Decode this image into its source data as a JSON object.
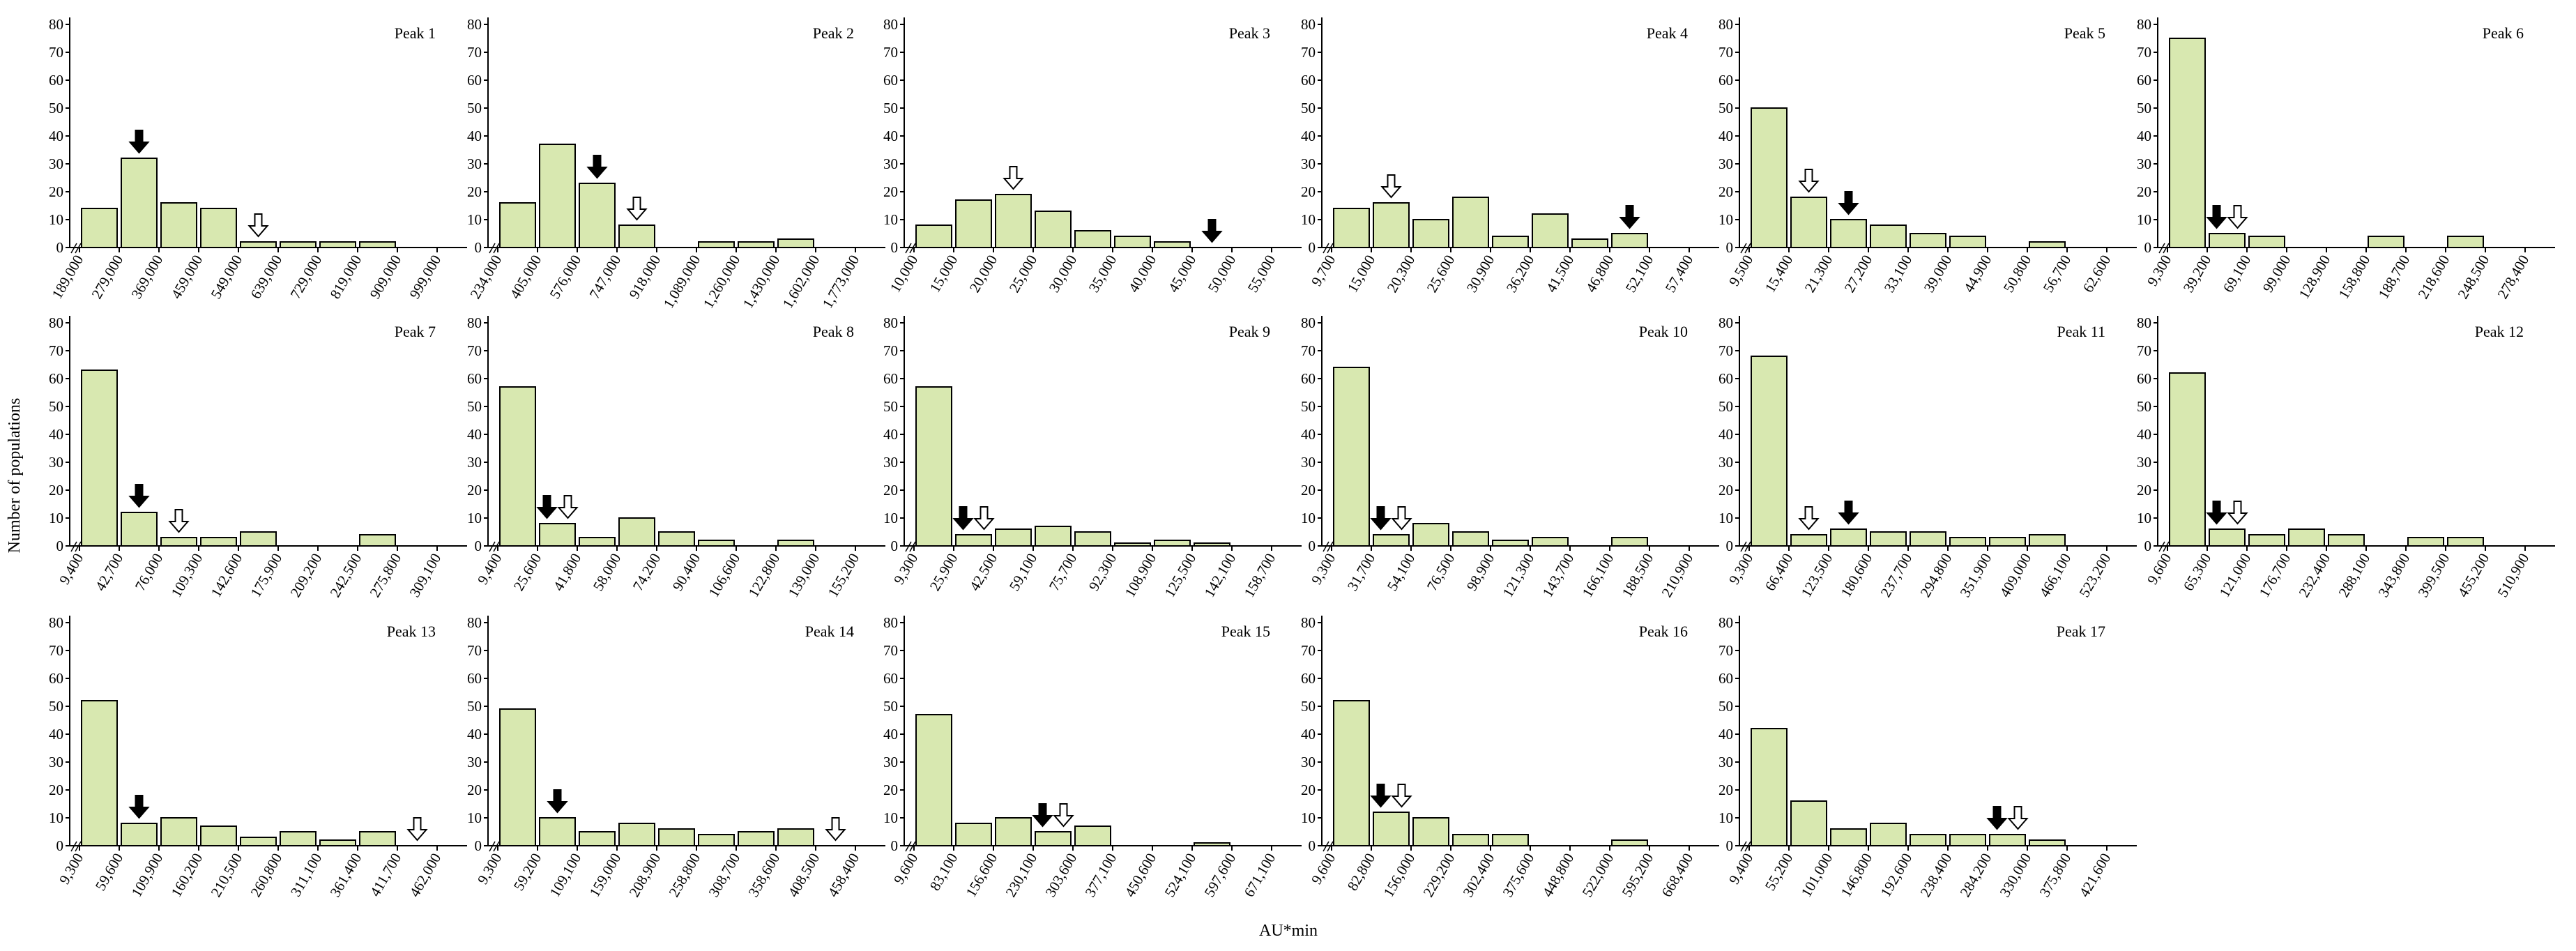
{
  "figure": {
    "ylabel": "Number of populations",
    "xlabel": "AU*min"
  },
  "style": {
    "bar_fill": "#d8e8b0",
    "bar_stroke": "#000000",
    "axis_color": "#000000",
    "open_arrow_fill": "#ffffff",
    "solid_arrow_fill": "#000000"
  },
  "chart_data": [
    {
      "type": "bar",
      "title": "Peak 1",
      "ylim": [
        0,
        80
      ],
      "yticks": [
        0,
        10,
        20,
        30,
        40,
        50,
        60,
        70,
        80
      ],
      "categories": [
        "189,000",
        "279,000",
        "369,000",
        "459,000",
        "549,000",
        "639,000",
        "729,000",
        "819,000",
        "909,000",
        "999,000"
      ],
      "values": [
        14,
        32,
        16,
        14,
        2,
        2,
        2,
        2,
        0,
        0
      ],
      "solid_arrow": "279,000",
      "open_arrow": "549,000"
    },
    {
      "type": "bar",
      "title": "Peak 2",
      "ylim": [
        0,
        80
      ],
      "yticks": [
        0,
        10,
        20,
        30,
        40,
        50,
        60,
        70,
        80
      ],
      "categories": [
        "234,000",
        "405,000",
        "576,000",
        "747,000",
        "918,000",
        "1,089,000",
        "1,260,000",
        "1,430,000",
        "1,602,000",
        "1,773,000"
      ],
      "values": [
        16,
        37,
        23,
        8,
        0,
        2,
        2,
        3,
        0,
        0
      ],
      "solid_arrow": "576,000",
      "open_arrow": "747,000"
    },
    {
      "type": "bar",
      "title": "Peak 3",
      "ylim": [
        0,
        80
      ],
      "yticks": [
        0,
        10,
        20,
        30,
        40,
        50,
        60,
        70,
        80
      ],
      "categories": [
        "10,000",
        "15,000",
        "20,000",
        "25,000",
        "30,000",
        "35,000",
        "40,000",
        "45,000",
        "50,000",
        "55,000"
      ],
      "values": [
        8,
        17,
        19,
        13,
        6,
        4,
        2,
        0,
        0,
        0
      ],
      "solid_arrow": "45,000",
      "open_arrow": "20,000"
    },
    {
      "type": "bar",
      "title": "Peak 4",
      "ylim": [
        0,
        80
      ],
      "yticks": [
        0,
        10,
        20,
        30,
        40,
        50,
        60,
        70,
        80
      ],
      "categories": [
        "9,700",
        "15,000",
        "20,300",
        "25,600",
        "30,900",
        "36,200",
        "41,500",
        "46,800",
        "52,100",
        "57,400"
      ],
      "values": [
        14,
        16,
        10,
        18,
        4,
        12,
        3,
        5,
        0,
        0
      ],
      "solid_arrow": "46,800",
      "open_arrow": "15,000"
    },
    {
      "type": "bar",
      "title": "Peak 5",
      "ylim": [
        0,
        80
      ],
      "yticks": [
        0,
        10,
        20,
        30,
        40,
        50,
        60,
        70,
        80
      ],
      "categories": [
        "9,500",
        "15,400",
        "21,300",
        "27,200",
        "33,100",
        "39,000",
        "44,900",
        "50,800",
        "56,700",
        "62,600"
      ],
      "values": [
        50,
        18,
        10,
        8,
        5,
        4,
        0,
        2,
        0,
        0
      ],
      "solid_arrow": "21,300",
      "open_arrow": "15,400"
    },
    {
      "type": "bar",
      "title": "Peak 6",
      "ylim": [
        0,
        80
      ],
      "yticks": [
        0,
        10,
        20,
        30,
        40,
        50,
        60,
        70,
        80
      ],
      "categories": [
        "9,300",
        "39,200",
        "69,100",
        "99,000",
        "128,900",
        "158,800",
        "188,700",
        "218,600",
        "248,500",
        "278,400"
      ],
      "values": [
        75,
        5,
        4,
        0,
        0,
        4,
        0,
        4,
        0,
        0
      ],
      "solid_arrow": "39,200",
      "open_arrow": "39,200"
    },
    {
      "type": "bar",
      "title": "Peak 7",
      "ylim": [
        0,
        80
      ],
      "yticks": [
        0,
        10,
        20,
        30,
        40,
        50,
        60,
        70,
        80
      ],
      "categories": [
        "9,400",
        "42,700",
        "76,000",
        "109,300",
        "142,600",
        "175,900",
        "209,200",
        "242,500",
        "275,800",
        "309,100"
      ],
      "values": [
        63,
        12,
        3,
        3,
        5,
        0,
        0,
        4,
        0,
        0
      ],
      "solid_arrow": "42,700",
      "open_arrow": "76,000"
    },
    {
      "type": "bar",
      "title": "Peak 8",
      "ylim": [
        0,
        80
      ],
      "yticks": [
        0,
        10,
        20,
        30,
        40,
        50,
        60,
        70,
        80
      ],
      "categories": [
        "9,400",
        "25,600",
        "41,800",
        "58,000",
        "74,200",
        "90,400",
        "106,600",
        "122,800",
        "139,000",
        "155,200"
      ],
      "values": [
        57,
        8,
        3,
        10,
        5,
        2,
        0,
        2,
        0,
        0
      ],
      "solid_arrow": "25,600",
      "open_arrow": "25,600"
    },
    {
      "type": "bar",
      "title": "Peak 9",
      "ylim": [
        0,
        80
      ],
      "yticks": [
        0,
        10,
        20,
        30,
        40,
        50,
        60,
        70,
        80
      ],
      "categories": [
        "9,300",
        "25,900",
        "42,500",
        "59,100",
        "75,700",
        "92,300",
        "108,900",
        "125,500",
        "142,100",
        "158,700"
      ],
      "values": [
        57,
        4,
        6,
        7,
        5,
        1,
        2,
        1,
        0,
        0
      ],
      "solid_arrow": "25,900",
      "open_arrow": "25,900"
    },
    {
      "type": "bar",
      "title": "Peak 10",
      "ylim": [
        0,
        80
      ],
      "yticks": [
        0,
        10,
        20,
        30,
        40,
        50,
        60,
        70,
        80
      ],
      "categories": [
        "9,300",
        "31,700",
        "54,100",
        "76,500",
        "98,900",
        "121,300",
        "143,700",
        "166,100",
        "188,500",
        "210,900"
      ],
      "values": [
        64,
        4,
        8,
        5,
        2,
        3,
        0,
        3,
        0,
        0
      ],
      "solid_arrow": "31,700",
      "open_arrow": "31,700"
    },
    {
      "type": "bar",
      "title": "Peak 11",
      "ylim": [
        0,
        80
      ],
      "yticks": [
        0,
        10,
        20,
        30,
        40,
        50,
        60,
        70,
        80
      ],
      "categories": [
        "9,300",
        "66,400",
        "123,500",
        "180,600",
        "237,700",
        "294,800",
        "351,900",
        "409,000",
        "466,100",
        "523,200"
      ],
      "values": [
        68,
        4,
        6,
        5,
        5,
        3,
        3,
        4,
        0,
        0
      ],
      "solid_arrow": "123,500",
      "open_arrow": "66,400"
    },
    {
      "type": "bar",
      "title": "Peak 12",
      "ylim": [
        0,
        80
      ],
      "yticks": [
        0,
        10,
        20,
        30,
        40,
        50,
        60,
        70,
        80
      ],
      "categories": [
        "9,600",
        "65,300",
        "121,000",
        "176,700",
        "232,400",
        "288,100",
        "343,800",
        "399,500",
        "455,200",
        "510,900"
      ],
      "values": [
        62,
        6,
        4,
        6,
        4,
        0,
        3,
        3,
        0,
        0
      ],
      "solid_arrow": "65,300",
      "open_arrow": "65,300"
    },
    {
      "type": "bar",
      "title": "Peak 13",
      "ylim": [
        0,
        80
      ],
      "yticks": [
        0,
        10,
        20,
        30,
        40,
        50,
        60,
        70,
        80
      ],
      "categories": [
        "9,300",
        "59,600",
        "109,900",
        "160,200",
        "210,500",
        "260,800",
        "311,100",
        "361,400",
        "411,700",
        "462,000"
      ],
      "values": [
        52,
        8,
        10,
        7,
        3,
        5,
        2,
        5,
        0,
        0
      ],
      "solid_arrow": "59,600",
      "open_arrow": "411,700"
    },
    {
      "type": "bar",
      "title": "Peak 14",
      "ylim": [
        0,
        80
      ],
      "yticks": [
        0,
        10,
        20,
        30,
        40,
        50,
        60,
        70,
        80
      ],
      "categories": [
        "9,300",
        "59,200",
        "109,100",
        "159,000",
        "208,900",
        "258,800",
        "308,700",
        "358,600",
        "408,500",
        "458,400"
      ],
      "values": [
        49,
        10,
        5,
        8,
        6,
        4,
        5,
        6,
        0,
        0
      ],
      "solid_arrow": "59,200",
      "open_arrow": "408,500"
    },
    {
      "type": "bar",
      "title": "Peak 15",
      "ylim": [
        0,
        80
      ],
      "yticks": [
        0,
        10,
        20,
        30,
        40,
        50,
        60,
        70,
        80
      ],
      "categories": [
        "9,600",
        "83,100",
        "156,600",
        "230,100",
        "303,600",
        "377,100",
        "450,600",
        "524,100",
        "597,600",
        "671,100"
      ],
      "values": [
        47,
        8,
        10,
        5,
        7,
        0,
        0,
        1,
        0,
        0
      ],
      "solid_arrow": "230,100",
      "open_arrow": "230,100"
    },
    {
      "type": "bar",
      "title": "Peak 16",
      "ylim": [
        0,
        80
      ],
      "yticks": [
        0,
        10,
        20,
        30,
        40,
        50,
        60,
        70,
        80
      ],
      "categories": [
        "9,600",
        "82,800",
        "156,000",
        "229,200",
        "302,400",
        "375,600",
        "448,800",
        "522,000",
        "595,200",
        "668,400"
      ],
      "values": [
        52,
        12,
        10,
        4,
        4,
        0,
        0,
        2,
        0,
        0
      ],
      "solid_arrow": "82,800",
      "open_arrow": "82,800"
    },
    {
      "type": "bar",
      "title": "Peak 17",
      "ylim": [
        0,
        80
      ],
      "yticks": [
        0,
        10,
        20,
        30,
        40,
        50,
        60,
        70,
        80
      ],
      "categories": [
        "9,400",
        "55,200",
        "101,000",
        "146,800",
        "192,600",
        "238,400",
        "284,200",
        "330,000",
        "375,800",
        "421,600"
      ],
      "values": [
        42,
        16,
        6,
        8,
        4,
        4,
        4,
        2,
        0,
        0
      ],
      "solid_arrow": "284,200",
      "open_arrow": "284,200"
    }
  ]
}
